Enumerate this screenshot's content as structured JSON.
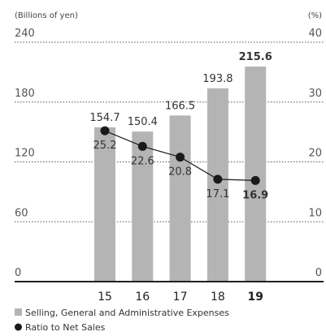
{
  "chart_data": {
    "type": "bar",
    "y_label": "(Billions of yen)",
    "y2_label": "(%)",
    "categories": [
      "15",
      "16",
      "17",
      "18",
      "19"
    ],
    "series": [
      {
        "name": "Selling, General and Administrative Expenses",
        "type": "bar",
        "color": "#b4b4b4",
        "values": [
          154.7,
          150.4,
          166.5,
          193.8,
          215.6
        ]
      },
      {
        "name": "Ratio to Net Sales",
        "type": "line",
        "axis": "y2",
        "color": "#1a1a1a",
        "values": [
          25.2,
          22.6,
          20.8,
          17.1,
          16.9
        ]
      }
    ],
    "ylim": [
      0,
      240
    ],
    "yticks": [
      0,
      60,
      120,
      180,
      240
    ],
    "y2lim": [
      0,
      40
    ],
    "y2ticks": [
      0,
      10,
      20,
      30,
      40
    ],
    "grid": true,
    "legend": "bottom-left"
  }
}
